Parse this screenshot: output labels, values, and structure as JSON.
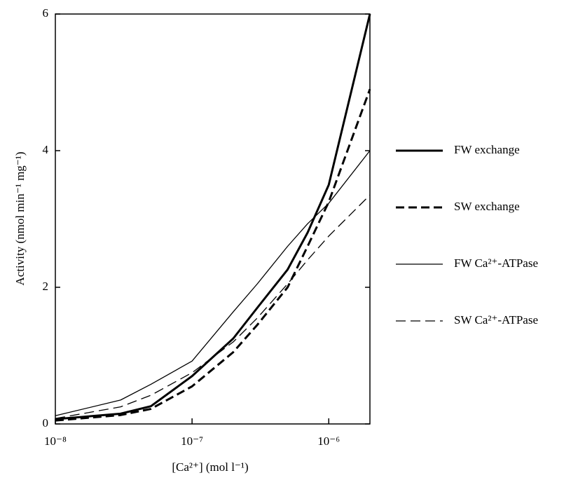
{
  "chart_data": {
    "type": "line",
    "x_label": "[Ca²⁺] (mol l⁻¹)",
    "y_label": "Activity (nmol min⁻¹ mg⁻¹)",
    "log_x": true,
    "x": [
      1e-08,
      3e-08,
      5e-08,
      1e-07,
      2e-07,
      3e-07,
      5e-07,
      7e-07,
      1e-06,
      2e-06
    ],
    "xlim": [
      1e-08,
      2e-06
    ],
    "xticks": [
      {
        "value": 1e-08,
        "label": "10⁻⁸"
      },
      {
        "value": 1e-07,
        "label": "10⁻⁷"
      },
      {
        "value": 1e-06,
        "label": "10⁻⁶"
      }
    ],
    "ylim": [
      0,
      6
    ],
    "yticks": [
      0,
      2,
      4,
      6
    ],
    "series": [
      {
        "name": "FW exchange",
        "color": "#000000",
        "width": 3,
        "dash": "solid",
        "values": [
          0.07,
          0.15,
          0.26,
          0.7,
          1.25,
          1.7,
          2.26,
          2.8,
          3.5,
          6.0
        ]
      },
      {
        "name": "SW exchange",
        "color": "#000000",
        "width": 3,
        "dash": "dashed",
        "values": [
          0.05,
          0.13,
          0.22,
          0.55,
          1.05,
          1.45,
          2.0,
          2.6,
          3.25,
          4.9
        ]
      },
      {
        "name": "FW Ca²⁺-ATPase",
        "color": "#000000",
        "width": 1.3,
        "dash": "solid",
        "values": [
          0.12,
          0.35,
          0.58,
          0.92,
          1.64,
          2.05,
          2.6,
          2.93,
          3.23,
          4.0
        ]
      },
      {
        "name": "SW Ca²⁺-ATPase",
        "color": "#000000",
        "width": 1.3,
        "dash": "dashed",
        "values": [
          0.08,
          0.25,
          0.42,
          0.75,
          1.2,
          1.55,
          2.05,
          2.4,
          2.75,
          3.35
        ]
      }
    ]
  }
}
